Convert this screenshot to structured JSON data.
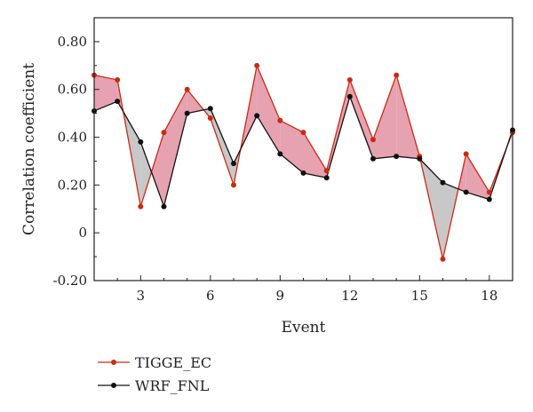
{
  "chart_data": {
    "type": "line",
    "xlabel": "Event",
    "ylabel": "Correlation coefficient",
    "xlim": [
      1,
      19
    ],
    "ylim": [
      -0.2,
      0.9
    ],
    "x_ticks": [
      3,
      6,
      9,
      12,
      15,
      18
    ],
    "y_ticks": [
      -0.2,
      0,
      0.2,
      0.4,
      0.6,
      0.8
    ],
    "y_tick_labels": [
      "-0.20",
      "0",
      "0.20",
      "0.40",
      "0.60",
      "0.80"
    ],
    "x": [
      1,
      2,
      3,
      4,
      5,
      6,
      7,
      8,
      9,
      10,
      11,
      12,
      13,
      14,
      15,
      16,
      17,
      18,
      19
    ],
    "series": [
      {
        "name": "TIGGE_EC",
        "color": "#cc2a12",
        "values": [
          0.66,
          0.64,
          0.11,
          0.42,
          0.6,
          0.48,
          0.2,
          0.7,
          0.47,
          0.42,
          0.26,
          0.64,
          0.39,
          0.66,
          0.32,
          -0.11,
          0.33,
          0.17,
          0.42
        ]
      },
      {
        "name": "WRF_FNL",
        "color": "#111111",
        "values": [
          0.51,
          0.55,
          0.38,
          0.11,
          0.5,
          0.52,
          0.29,
          0.49,
          0.33,
          0.25,
          0.23,
          0.57,
          0.31,
          0.32,
          0.31,
          0.21,
          0.17,
          0.14,
          0.43
        ]
      }
    ],
    "fill_above_color": "#e6a2b1",
    "fill_below_color": "#c8c8c8",
    "legend_position": "bottom-left",
    "grid": false
  }
}
